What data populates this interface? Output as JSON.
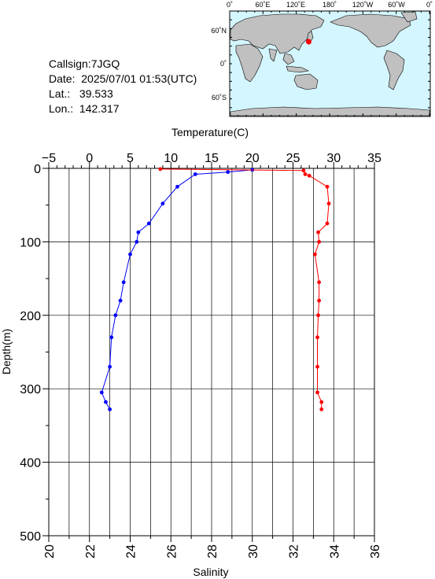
{
  "station": {
    "callsign": "Callsign:7JGQ",
    "date_label": "Date:",
    "date_value": "2025/07/01 01:53(UTC)",
    "lat_label": "Lat.:",
    "lat_value": "39.533",
    "lon_label": "Lon.:",
    "lon_value": "142.317"
  },
  "map": {
    "lon_labels": [
      "0˚",
      "60˚E",
      "120˚E",
      "180˚",
      "120˚W",
      "60˚W",
      "0˚"
    ],
    "lat_labels": [
      "60˚N",
      "0˚",
      "60˚S"
    ],
    "land_color": "#c0c0c0",
    "ocean_color": "#d4f6ff",
    "marker_color": "#ff0000",
    "marker_lon": 142.317,
    "marker_lat": 39.533
  },
  "chart_data": {
    "type": "line",
    "ylabel": "Depth(m)",
    "ylim": [
      0,
      500
    ],
    "y_reversed": true,
    "y_ticks": [
      "0",
      "100",
      "200",
      "300",
      "400",
      "500"
    ],
    "top_axis": {
      "label": "Temperature(C)",
      "range": [
        -5,
        35
      ],
      "ticks": [
        "−5",
        "0",
        "5",
        "10",
        "15",
        "20",
        "25",
        "30",
        "35"
      ]
    },
    "bottom_axis": {
      "label": "Salinity",
      "range": [
        20,
        36
      ],
      "ticks": [
        "20",
        "22",
        "24",
        "26",
        "28",
        "30",
        "32",
        "34",
        "36"
      ]
    },
    "grid": true,
    "series": [
      {
        "axis": "top",
        "color": "#0000ff",
        "points": [
          [
            20.0,
            2
          ],
          [
            17.0,
            5
          ],
          [
            13.0,
            8
          ],
          [
            10.8,
            25
          ],
          [
            9.0,
            48
          ],
          [
            7.3,
            75
          ],
          [
            6.0,
            87
          ],
          [
            5.8,
            100
          ],
          [
            5.0,
            117
          ],
          [
            4.2,
            155
          ],
          [
            3.8,
            180
          ],
          [
            3.2,
            200
          ],
          [
            2.7,
            230
          ],
          [
            2.5,
            270
          ],
          [
            1.5,
            305
          ],
          [
            2.0,
            318
          ],
          [
            2.5,
            328
          ]
        ]
      },
      {
        "axis": "top",
        "color": "#ff0000",
        "points": [
          [
            8.7,
            1
          ],
          [
            26.3,
            3
          ],
          [
            26.5,
            8
          ],
          [
            27.0,
            10
          ],
          [
            29.2,
            25
          ],
          [
            29.4,
            48
          ],
          [
            29.2,
            75
          ],
          [
            28.1,
            87
          ],
          [
            28.2,
            100
          ],
          [
            27.7,
            117
          ],
          [
            28.2,
            155
          ],
          [
            28.2,
            180
          ],
          [
            28.1,
            200
          ],
          [
            28.0,
            230
          ],
          [
            28.0,
            270
          ],
          [
            28.0,
            305
          ],
          [
            28.5,
            318
          ],
          [
            28.5,
            328
          ]
        ]
      }
    ]
  }
}
